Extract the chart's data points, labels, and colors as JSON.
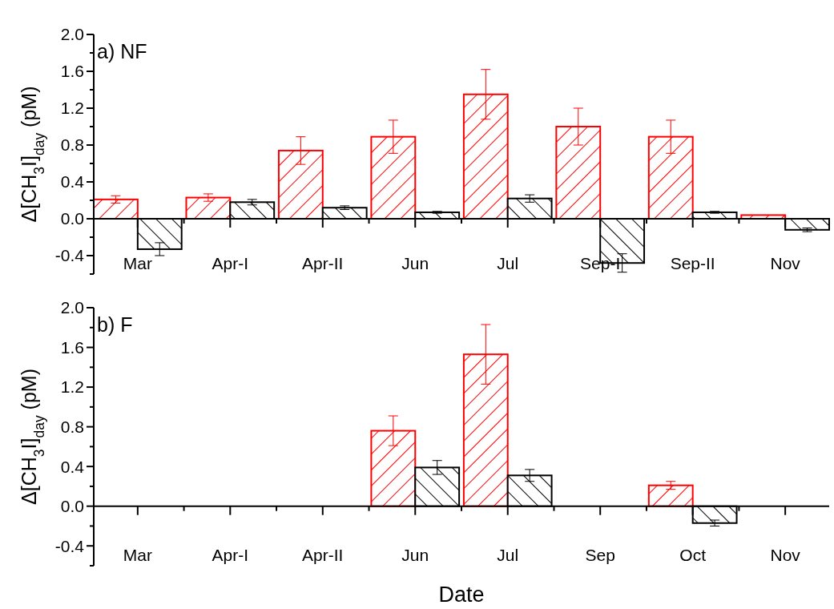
{
  "chart_data": [
    {
      "type": "bar",
      "annotations": [
        "a) NF"
      ],
      "ylabel": "Δ[CH$_{3}$I]$_{day}$ (pM)",
      "categories": [
        "Mar",
        "Apr-I",
        "Apr-II",
        "Jun",
        "Jul",
        "Sep-I",
        "Sep-II",
        "Nov"
      ],
      "series": [
        {
          "color": "#ff0000",
          "values": [
            0.21,
            0.23,
            0.74,
            0.89,
            1.35,
            1.0,
            0.89,
            0.04
          ],
          "errors": [
            0.04,
            0.04,
            0.15,
            0.18,
            0.27,
            0.2,
            0.18,
            null
          ]
        },
        {
          "color": "#000000",
          "values": [
            -0.33,
            0.18,
            0.12,
            0.07,
            0.22,
            -0.48,
            0.07,
            -0.12
          ],
          "errors": [
            0.07,
            0.03,
            0.02,
            0.01,
            0.04,
            0.1,
            0.01,
            0.02
          ]
        }
      ],
      "ylim": [
        -0.6,
        2.0
      ],
      "yticks": [
        {
          "value": -0.6,
          "label": null
        },
        -0.4,
        {
          "value": -0.2,
          "label": null
        },
        {
          "value": 0,
          "label": "0.0"
        },
        {
          "value": 0.2,
          "label": null
        },
        0.4,
        {
          "value": 0.6,
          "label": null
        },
        0.8,
        {
          "value": 1.0,
          "label": null
        },
        1.2,
        {
          "value": 1.4,
          "label": null
        },
        1.6,
        {
          "value": 1.8,
          "label": null
        },
        {
          "value": 2,
          "label": "2.0"
        }
      ],
      "grid": false
    },
    {
      "type": "bar",
      "annotations": [
        "b) F"
      ],
      "ylabel": "Δ[CH$_{3}$I]$_{day}$ (pM)",
      "xlabel": "Date",
      "categories": [
        "Mar",
        "Apr-I",
        "Apr-II",
        "Jun",
        "Jul",
        "Sep",
        "Oct",
        "Nov"
      ],
      "series": [
        {
          "color": "#ff0000",
          "values": [
            null,
            null,
            null,
            0.76,
            1.53,
            null,
            0.21,
            null
          ],
          "errors": [
            null,
            null,
            null,
            0.15,
            0.3,
            null,
            0.04,
            null
          ]
        },
        {
          "color": "#000000",
          "values": [
            null,
            null,
            null,
            0.39,
            0.31,
            null,
            -0.17,
            null
          ],
          "errors": [
            null,
            null,
            null,
            0.07,
            0.06,
            null,
            0.03,
            null
          ]
        }
      ],
      "ylim": [
        -0.6,
        2.0
      ],
      "yticks": [
        {
          "value": -0.6,
          "label": null
        },
        -0.4,
        {
          "value": -0.2,
          "label": null
        },
        {
          "value": 0,
          "label": "0.0"
        },
        {
          "value": 0.2,
          "label": null
        },
        0.4,
        {
          "value": 0.6,
          "label": null
        },
        0.8,
        {
          "value": 1.0,
          "label": null
        },
        1.2,
        {
          "value": 1.4,
          "label": null
        },
        1.6,
        {
          "value": 1.8,
          "label": null
        },
        {
          "value": 2,
          "label": "2.0"
        }
      ],
      "grid": false
    }
  ]
}
